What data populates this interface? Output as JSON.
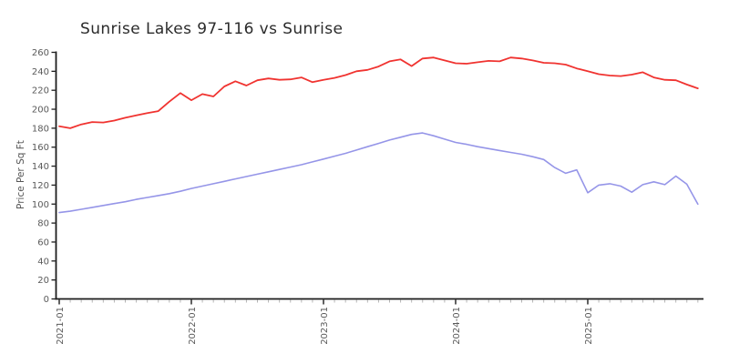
{
  "colors": {
    "background": "#ffffff",
    "axis": "#1c1c1c",
    "tick_label": "#5a5a5a",
    "minor_tick": "#b3b3b3",
    "title": "#2b2b2b",
    "series_red": "#f03330",
    "series_blue": "#9595e8"
  },
  "chart_data": {
    "type": "line",
    "title": "Sunrise Lakes 97-116 vs Sunrise",
    "xlabel": "",
    "ylabel": "Price Per Sq Ft",
    "ylim": [
      0,
      260
    ],
    "grid": false,
    "legend": "none",
    "y_ticks": [
      0,
      20,
      40,
      60,
      80,
      100,
      120,
      140,
      160,
      180,
      200,
      220,
      240,
      260
    ],
    "x_major_ticks": [
      "2021-01",
      "2022-01",
      "2023-01",
      "2024-01",
      "2025-01"
    ],
    "x_minor_tick_interval": "monthly",
    "x": [
      "2021-01",
      "2021-02",
      "2021-03",
      "2021-04",
      "2021-05",
      "2021-06",
      "2021-07",
      "2021-08",
      "2021-09",
      "2021-10",
      "2021-11",
      "2021-12",
      "2022-01",
      "2022-02",
      "2022-03",
      "2022-04",
      "2022-05",
      "2022-06",
      "2022-07",
      "2022-08",
      "2022-09",
      "2022-10",
      "2022-11",
      "2022-12",
      "2023-01",
      "2023-02",
      "2023-03",
      "2023-04",
      "2023-05",
      "2023-06",
      "2023-07",
      "2023-08",
      "2023-09",
      "2023-10",
      "2023-11",
      "2023-12",
      "2024-01",
      "2024-02",
      "2024-03",
      "2024-04",
      "2024-05",
      "2024-06",
      "2024-07",
      "2024-08",
      "2024-09",
      "2024-10",
      "2024-11",
      "2024-12",
      "2025-01",
      "2025-02",
      "2025-03",
      "2025-04",
      "2025-05",
      "2025-06",
      "2025-07",
      "2025-08",
      "2025-09",
      "2025-10",
      "2025-11"
    ],
    "series": [
      {
        "name": "Sunrise Lakes 97-116",
        "color": "#f03330",
        "values": [
          182,
          180,
          184,
          186.5,
          186,
          188,
          191,
          193.5,
          196,
          198,
          208,
          217,
          209.5,
          216,
          213.5,
          224,
          229.5,
          225,
          230.5,
          232.5,
          231,
          231.5,
          233.5,
          228.5,
          231,
          233,
          236,
          240,
          241.5,
          245,
          250.5,
          252.5,
          245.5,
          253.5,
          254.5,
          251.5,
          248.5,
          248,
          249.5,
          251,
          250.5,
          254.5,
          253.5,
          251.5,
          249,
          248.5,
          247,
          243,
          240,
          237,
          235.5,
          235,
          236.5,
          239,
          233.5,
          231,
          230.5,
          226,
          222
        ]
      },
      {
        "name": "Sunrise",
        "color": "#9595e8",
        "values": [
          91,
          92.5,
          94.5,
          96.5,
          98.5,
          100.5,
          102.5,
          105,
          107,
          109,
          111,
          113.5,
          116.5,
          119,
          121.5,
          124,
          126.5,
          129,
          131.5,
          134,
          136.5,
          139,
          141.5,
          144.5,
          147.5,
          150.5,
          153.5,
          157,
          160.5,
          164,
          167.5,
          170.5,
          173.5,
          175,
          172,
          168.5,
          165,
          163,
          160.5,
          158.5,
          156.5,
          154.5,
          152.5,
          150,
          147,
          138.5,
          132.5,
          136,
          112,
          120,
          121.5,
          119,
          112.5,
          120.5,
          123.5,
          120.5,
          129.5,
          121,
          100
        ]
      }
    ]
  }
}
